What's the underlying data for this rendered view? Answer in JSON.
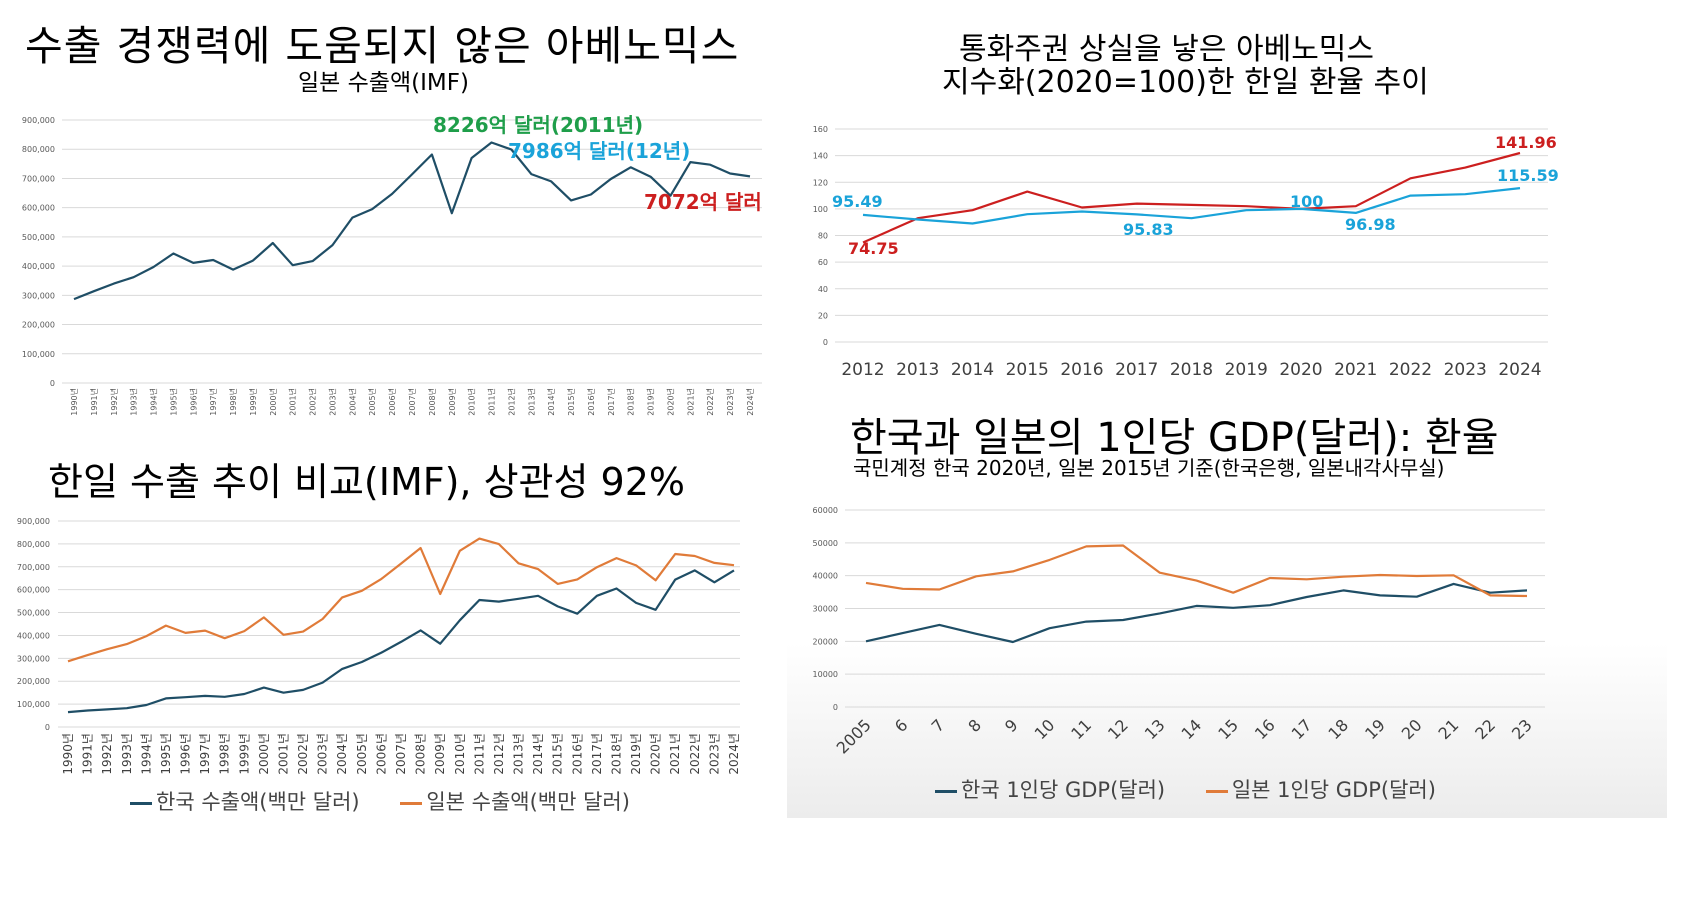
{
  "panels": {
    "p1": {
      "title": "수출 경쟁력에 도움되지 않은 아베노믹스",
      "subtitle": "일본 수출액(IMF)"
    },
    "p2": {
      "title": "통화주권 상실을 낳은 아베노믹스",
      "subtitle": "지수화(2020=100)한 한일 환율 추이"
    },
    "p3": {
      "title": "한일 수출 추이 비교(IMF), 상관성 92%"
    },
    "p4": {
      "title": "한국과 일본의 1인당 GDP(달러): 환율",
      "subtitle": "국민계정 한국 2020년, 일본 2015년 기준(한국은행, 일본내각사무실)"
    }
  },
  "colors": {
    "navy": "#1f4e66",
    "orange": "#e07b39",
    "red": "#cc1f1f",
    "cyan": "#1aa3d9",
    "green": "#1f9e4a"
  },
  "chart_data": [
    {
      "type": "line",
      "x": [
        "1990년",
        "1991년",
        "1992년",
        "1993년",
        "1994년",
        "1995년",
        "1996년",
        "1997년",
        "1998년",
        "1999년",
        "2000년",
        "2001년",
        "2002년",
        "2003년",
        "2004년",
        "2005년",
        "2006년",
        "2007년",
        "2008년",
        "2009년",
        "2010년",
        "2011년",
        "2012년",
        "2013년",
        "2014년",
        "2015년",
        "2016년",
        "2017년",
        "2018년",
        "2019년",
        "2020년",
        "2021년",
        "2022년",
        "2023년",
        "2024년"
      ],
      "series": [
        {
          "name": "",
          "values": [
            287000,
            314000,
            340000,
            362000,
            397000,
            443000,
            411000,
            421000,
            388000,
            419000,
            479000,
            403000,
            417000,
            472000,
            566000,
            595000,
            647000,
            714000,
            782000,
            581000,
            770000,
            823000,
            799000,
            715000,
            690000,
            625000,
            645000,
            698000,
            738000,
            706000,
            641000,
            756000,
            747000,
            717000,
            707000
          ]
        }
      ],
      "ylim": [
        0,
        900000
      ],
      "yticks": [
        "0",
        "100,000",
        "200,000",
        "300,000",
        "400,000",
        "500,000",
        "600,000",
        "700,000",
        "800,000",
        "900,000"
      ],
      "annotations": [
        {
          "text": "8226억 달러(2011년)",
          "color": "green"
        },
        {
          "text": "7986억 달러(12년)",
          "color": "cyan"
        },
        {
          "text": "7072억 달러",
          "color": "red"
        }
      ]
    },
    {
      "type": "line",
      "x": [
        "2012",
        "2013",
        "2014",
        "2015",
        "2016",
        "2017",
        "2018",
        "2019",
        "2020",
        "2021",
        "2022",
        "2023",
        "2024"
      ],
      "series": [
        {
          "name": "",
          "color": "red",
          "values": [
            74.75,
            93,
            99,
            113,
            101,
            104,
            103,
            102,
            100,
            102,
            123,
            131,
            141.96
          ]
        },
        {
          "name": "",
          "color": "cyan",
          "values": [
            95.49,
            92,
            89,
            96,
            98,
            95.83,
            93,
            99,
            100,
            96.98,
            110,
            111,
            115.59
          ]
        }
      ],
      "ylim": [
        0,
        160
      ],
      "yticks": [
        "0",
        "20",
        "40",
        "60",
        "80",
        "100",
        "120",
        "140",
        "160"
      ],
      "data_labels": [
        {
          "text": "95.49",
          "color": "cyan"
        },
        {
          "text": "74.75",
          "color": "red"
        },
        {
          "text": "95.83",
          "color": "cyan"
        },
        {
          "text": "100",
          "color": "cyan"
        },
        {
          "text": "96.98",
          "color": "cyan"
        },
        {
          "text": "141.96",
          "color": "red"
        },
        {
          "text": "115.59",
          "color": "cyan"
        }
      ]
    },
    {
      "type": "line",
      "x": [
        "1990년",
        "1991년",
        "1992년",
        "1993년",
        "1994년",
        "1995년",
        "1996년",
        "1997년",
        "1998년",
        "1999년",
        "2000년",
        "2001년",
        "2002년",
        "2003년",
        "2004년",
        "2005년",
        "2006년",
        "2007년",
        "2008년",
        "2009년",
        "2010년",
        "2011년",
        "2012년",
        "2013년",
        "2014년",
        "2015년",
        "2016년",
        "2017년",
        "2018년",
        "2019년",
        "2020년",
        "2021년",
        "2022년",
        "2023년",
        "2024년"
      ],
      "series": [
        {
          "name": "한국 수출액(백만 달러)",
          "color": "navy",
          "values": [
            65000,
            72000,
            77000,
            82000,
            96000,
            125000,
            130000,
            136000,
            132000,
            144000,
            172000,
            150000,
            162000,
            194000,
            254000,
            284000,
            325000,
            372000,
            422000,
            364000,
            466000,
            555000,
            548000,
            560000,
            573000,
            527000,
            495000,
            573000,
            605000,
            542000,
            512000,
            644000,
            684000,
            632000,
            684000
          ]
        },
        {
          "name": "일본 수출액(백만 달러)",
          "color": "orange",
          "values": [
            287000,
            314000,
            340000,
            362000,
            397000,
            443000,
            411000,
            421000,
            388000,
            419000,
            479000,
            403000,
            417000,
            472000,
            566000,
            595000,
            647000,
            714000,
            782000,
            581000,
            770000,
            823000,
            799000,
            715000,
            690000,
            625000,
            645000,
            698000,
            738000,
            706000,
            641000,
            756000,
            747000,
            717000,
            707000
          ]
        }
      ],
      "ylim": [
        0,
        900000
      ],
      "yticks": [
        "0",
        "100,000",
        "200,000",
        "300,000",
        "400,000",
        "500,000",
        "600,000",
        "700,000",
        "800,000",
        "900,000"
      ]
    },
    {
      "type": "line",
      "x": [
        "2005",
        "6",
        "7",
        "8",
        "9",
        "10",
        "11",
        "12",
        "13",
        "14",
        "15",
        "16",
        "17",
        "18",
        "19",
        "20",
        "21",
        "22",
        "23"
      ],
      "series": [
        {
          "name": "한국 1인당 GDP(달러)",
          "color": "navy",
          "values": [
            20000,
            22500,
            25000,
            22300,
            19800,
            24000,
            26000,
            26500,
            28500,
            30800,
            30200,
            31000,
            33500,
            35500,
            34000,
            33600,
            37500,
            34800,
            35500
          ]
        },
        {
          "name": "일본 1인당 GDP(달러)",
          "color": "orange",
          "values": [
            37800,
            36000,
            35800,
            39800,
            41300,
            44800,
            48900,
            49200,
            40900,
            38500,
            34800,
            39300,
            38900,
            39700,
            40200,
            39900,
            40100,
            34000,
            33800
          ]
        }
      ],
      "ylim": [
        0,
        60000
      ],
      "yticks": [
        "0",
        "10000",
        "20000",
        "30000",
        "40000",
        "50000",
        "60000"
      ]
    }
  ]
}
